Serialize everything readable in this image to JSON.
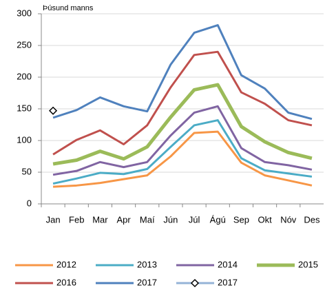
{
  "chart_data": {
    "type": "line",
    "y_label": "Þúsund manns",
    "categories": [
      "Jan",
      "Feb",
      "Mar",
      "Apr",
      "Maí",
      "Jún",
      "Júl",
      "Ágú",
      "Sep",
      "Okt",
      "Nóv",
      "Des"
    ],
    "ylim": [
      0,
      300
    ],
    "yticks": [
      0,
      50,
      100,
      150,
      200,
      250,
      300
    ],
    "grid": true,
    "series": [
      {
        "name": "2012",
        "color": "#f79646",
        "values": [
          27,
          29,
          33,
          39,
          45,
          75,
          112,
          114,
          65,
          45,
          37,
          29
        ]
      },
      {
        "name": "2013",
        "color": "#4bacc6",
        "values": [
          32,
          40,
          49,
          47,
          55,
          90,
          124,
          132,
          72,
          53,
          48,
          43
        ]
      },
      {
        "name": "2014",
        "color": "#8064a2",
        "values": [
          46,
          52,
          66,
          58,
          66,
          108,
          144,
          154,
          88,
          66,
          61,
          54
        ]
      },
      {
        "name": "2015",
        "color": "#9bbb59",
        "values": [
          63,
          69,
          83,
          71,
          90,
          137,
          180,
          188,
          122,
          98,
          81,
          72
        ]
      },
      {
        "name": "2016",
        "color": "#c0504d",
        "values": [
          78,
          101,
          116,
          94,
          124,
          184,
          235,
          240,
          176,
          158,
          132,
          124
        ]
      },
      {
        "name": "2017",
        "color": "#4f81bd",
        "values": [
          136,
          148,
          168,
          154,
          146,
          220,
          270,
          282,
          203,
          182,
          144,
          134
        ]
      },
      {
        "name": "2017",
        "color": "#95b3d7",
        "values": [
          147,
          null,
          null,
          null,
          null,
          null,
          null,
          null,
          null,
          null,
          null,
          null
        ]
      }
    ]
  }
}
